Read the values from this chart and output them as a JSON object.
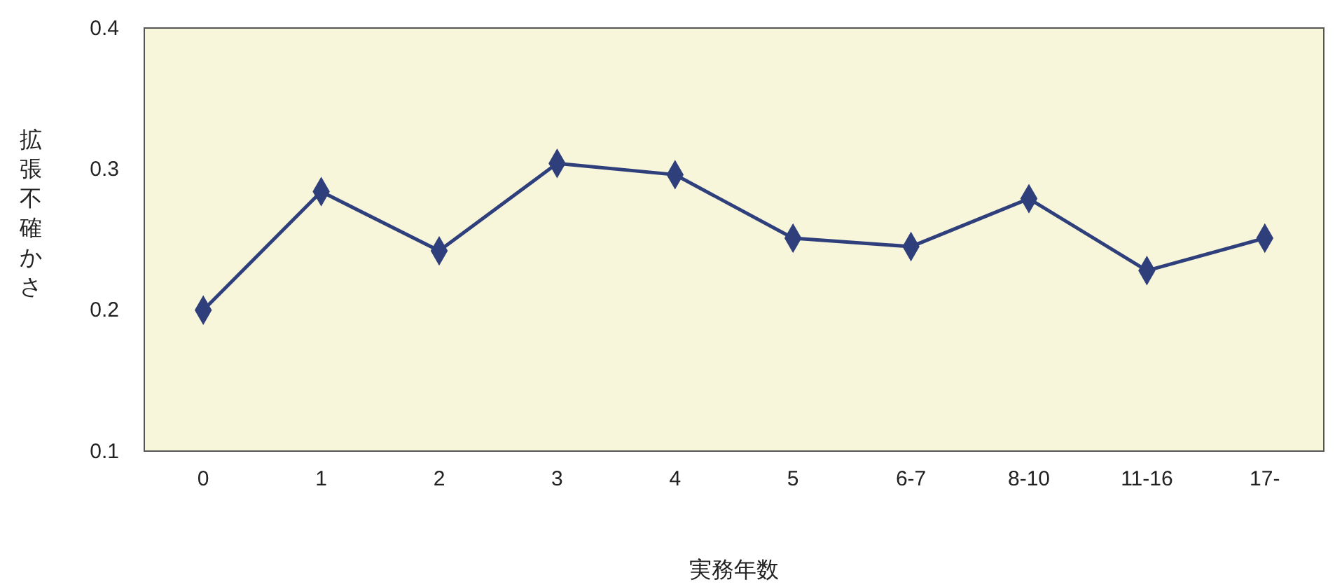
{
  "chart_data": {
    "type": "line",
    "xlabel": "実務年数",
    "ylabel": "拡張不確かさ",
    "categories": [
      "0",
      "1",
      "2",
      "3",
      "4",
      "5",
      "6-7",
      "8-10",
      "11-16",
      "17-"
    ],
    "series": [
      {
        "color": "#2e3f7c",
        "values": [
          0.2,
          0.284,
          0.242,
          0.304,
          0.296,
          0.251,
          0.245,
          0.279,
          0.228,
          0.251
        ]
      }
    ],
    "ylim": [
      0.1,
      0.4
    ],
    "yticks": [
      {
        "value": 0.1,
        "label": "0.1"
      },
      {
        "value": 0.2,
        "label": "0.2"
      },
      {
        "value": 0.3,
        "label": "0.3"
      },
      {
        "value": 0.4,
        "label": "0.4"
      }
    ],
    "grid": false,
    "marker": "diamond",
    "line_style": "solid"
  }
}
